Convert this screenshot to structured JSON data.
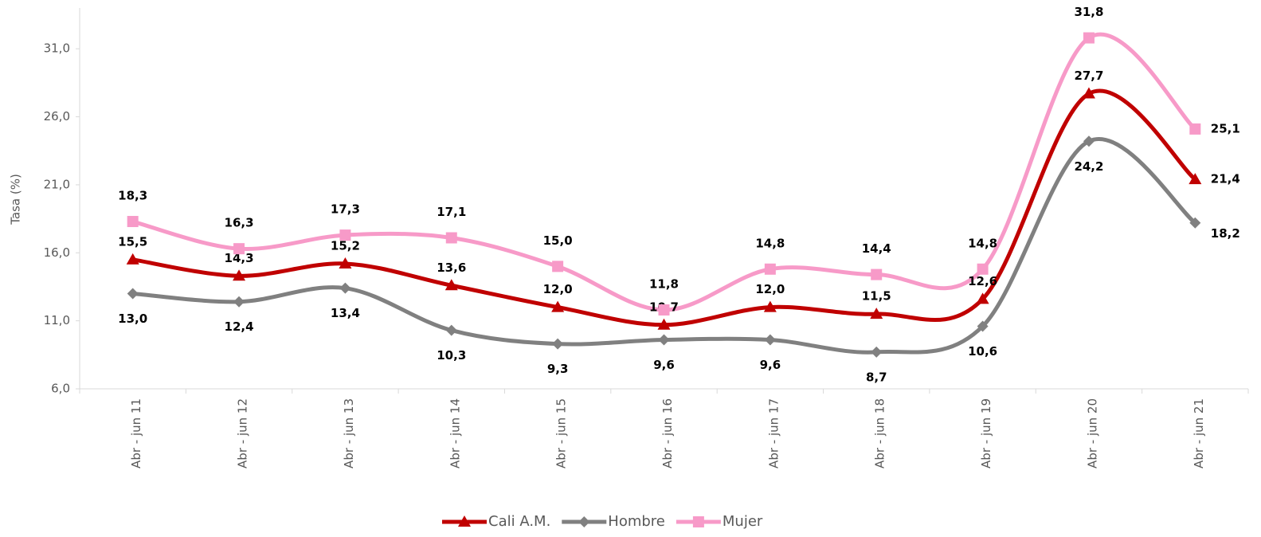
{
  "chart_data": {
    "type": "line",
    "y_label": "Tasa (%)",
    "categories": [
      "Abr - jun 11",
      "Abr - jun 12",
      "Abr - jun 13",
      "Abr - jun 14",
      "Abr - jun 15",
      "Abr - jun 16",
      "Abr - jun 17",
      "Abr - jun 18",
      "Abr - jun 19",
      "Abr - jun 20",
      "Abr - jun 21"
    ],
    "series": [
      {
        "name": "Cali A.M.",
        "color": "#c00000",
        "marker": "triangle",
        "values": [
          15.5,
          14.3,
          15.2,
          13.6,
          12.0,
          10.7,
          12.0,
          11.5,
          12.6,
          27.7,
          21.4
        ],
        "value_labels": [
          "15,5",
          "14,3",
          "15,2",
          "13,6",
          "12,0",
          "10,7",
          "12,0",
          "11,5",
          "12,6",
          "27,7",
          "21,4"
        ]
      },
      {
        "name": "Hombre",
        "color": "#808080",
        "marker": "diamond",
        "values": [
          13.0,
          12.4,
          13.4,
          10.3,
          9.3,
          9.6,
          9.6,
          8.7,
          10.6,
          24.2,
          18.2
        ],
        "value_labels": [
          "13,0",
          "12,4",
          "13,4",
          "10,3",
          "9,3",
          "9,6",
          "9,6",
          "8,7",
          "10,6",
          "24,2",
          "18,2"
        ]
      },
      {
        "name": "Mujer",
        "color": "#f79ac8",
        "marker": "square",
        "values": [
          18.3,
          16.3,
          17.3,
          17.1,
          15.0,
          11.8,
          14.8,
          14.4,
          14.8,
          31.8,
          25.1
        ],
        "value_labels": [
          "18,3",
          "16,3",
          "17,3",
          "17,1",
          "15,0",
          "11,8",
          "14,8",
          "14,4",
          "14,8",
          "31,8",
          "25,1"
        ]
      }
    ],
    "ylim": [
      6,
      34
    ],
    "yticks": [
      {
        "value": 6,
        "label": "6,0"
      },
      {
        "value": 11,
        "label": "11,0"
      },
      {
        "value": 16,
        "label": "16,0"
      },
      {
        "value": 21,
        "label": "21,0"
      },
      {
        "value": 26,
        "label": "26,0"
      },
      {
        "value": 31,
        "label": "31,0"
      }
    ],
    "legend": "bottom",
    "grid": false
  }
}
